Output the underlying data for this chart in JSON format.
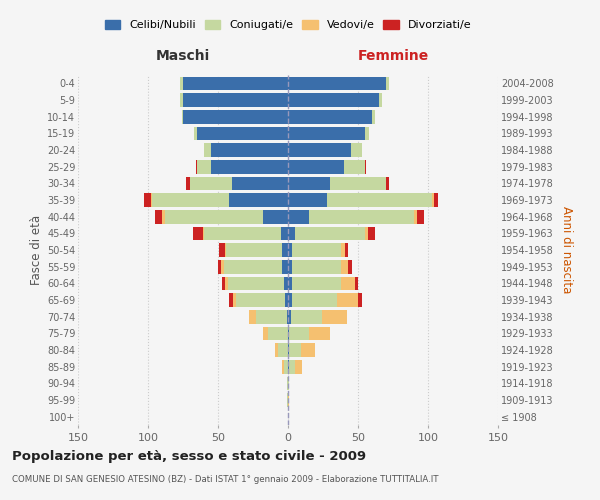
{
  "age_groups": [
    "100+",
    "95-99",
    "90-94",
    "85-89",
    "80-84",
    "75-79",
    "70-74",
    "65-69",
    "60-64",
    "55-59",
    "50-54",
    "45-49",
    "40-44",
    "35-39",
    "30-34",
    "25-29",
    "20-24",
    "15-19",
    "10-14",
    "5-9",
    "0-4"
  ],
  "birth_years": [
    "≤ 1908",
    "1909-1913",
    "1914-1918",
    "1919-1923",
    "1924-1928",
    "1929-1933",
    "1934-1938",
    "1939-1943",
    "1944-1948",
    "1949-1953",
    "1954-1958",
    "1959-1963",
    "1964-1968",
    "1969-1973",
    "1974-1978",
    "1979-1983",
    "1984-1988",
    "1989-1993",
    "1994-1998",
    "1999-2003",
    "2004-2008"
  ],
  "maschi": {
    "celibi": [
      0,
      0,
      0,
      0,
      0,
      0,
      1,
      2,
      3,
      4,
      4,
      5,
      18,
      42,
      40,
      55,
      55,
      65,
      75,
      75,
      75
    ],
    "coniugati": [
      0,
      1,
      1,
      3,
      7,
      14,
      22,
      35,
      40,
      42,
      40,
      55,
      70,
      55,
      30,
      10,
      5,
      2,
      1,
      2,
      2
    ],
    "vedovi": [
      0,
      0,
      0,
      1,
      2,
      4,
      5,
      2,
      2,
      2,
      1,
      1,
      2,
      1,
      0,
      0,
      0,
      0,
      0,
      0,
      0
    ],
    "divorziati": [
      0,
      0,
      0,
      0,
      0,
      0,
      0,
      3,
      2,
      2,
      4,
      7,
      5,
      5,
      3,
      1,
      0,
      0,
      0,
      0,
      0
    ]
  },
  "femmine": {
    "nubili": [
      0,
      0,
      0,
      1,
      1,
      1,
      2,
      3,
      3,
      3,
      3,
      5,
      15,
      28,
      30,
      40,
      45,
      55,
      60,
      65,
      70
    ],
    "coniugate": [
      0,
      0,
      1,
      4,
      8,
      14,
      22,
      32,
      35,
      35,
      35,
      50,
      75,
      75,
      40,
      15,
      8,
      3,
      2,
      2,
      2
    ],
    "vedove": [
      0,
      1,
      0,
      5,
      10,
      15,
      18,
      15,
      10,
      5,
      3,
      2,
      2,
      1,
      0,
      0,
      0,
      0,
      0,
      0,
      0
    ],
    "divorziate": [
      0,
      0,
      0,
      0,
      0,
      0,
      0,
      3,
      2,
      3,
      2,
      5,
      5,
      3,
      2,
      1,
      0,
      0,
      0,
      0,
      0
    ]
  },
  "colors": {
    "celibi": "#3a6eaa",
    "coniugati": "#c5d8a0",
    "vedovi": "#f5c070",
    "divorziati": "#cc2222"
  },
  "xlim": 150,
  "title": "Popolazione per età, sesso e stato civile - 2009",
  "subtitle": "COMUNE DI SAN GENESIO ATESINO (BZ) - Dati ISTAT 1° gennaio 2009 - Elaborazione TUTTITALIA.IT",
  "ylabel_left": "Fasce di età",
  "ylabel_right": "Anni di nascita",
  "xlabel_left": "Maschi",
  "xlabel_right": "Femmine",
  "bg_color": "#f5f5f5",
  "grid_color": "#cccccc"
}
